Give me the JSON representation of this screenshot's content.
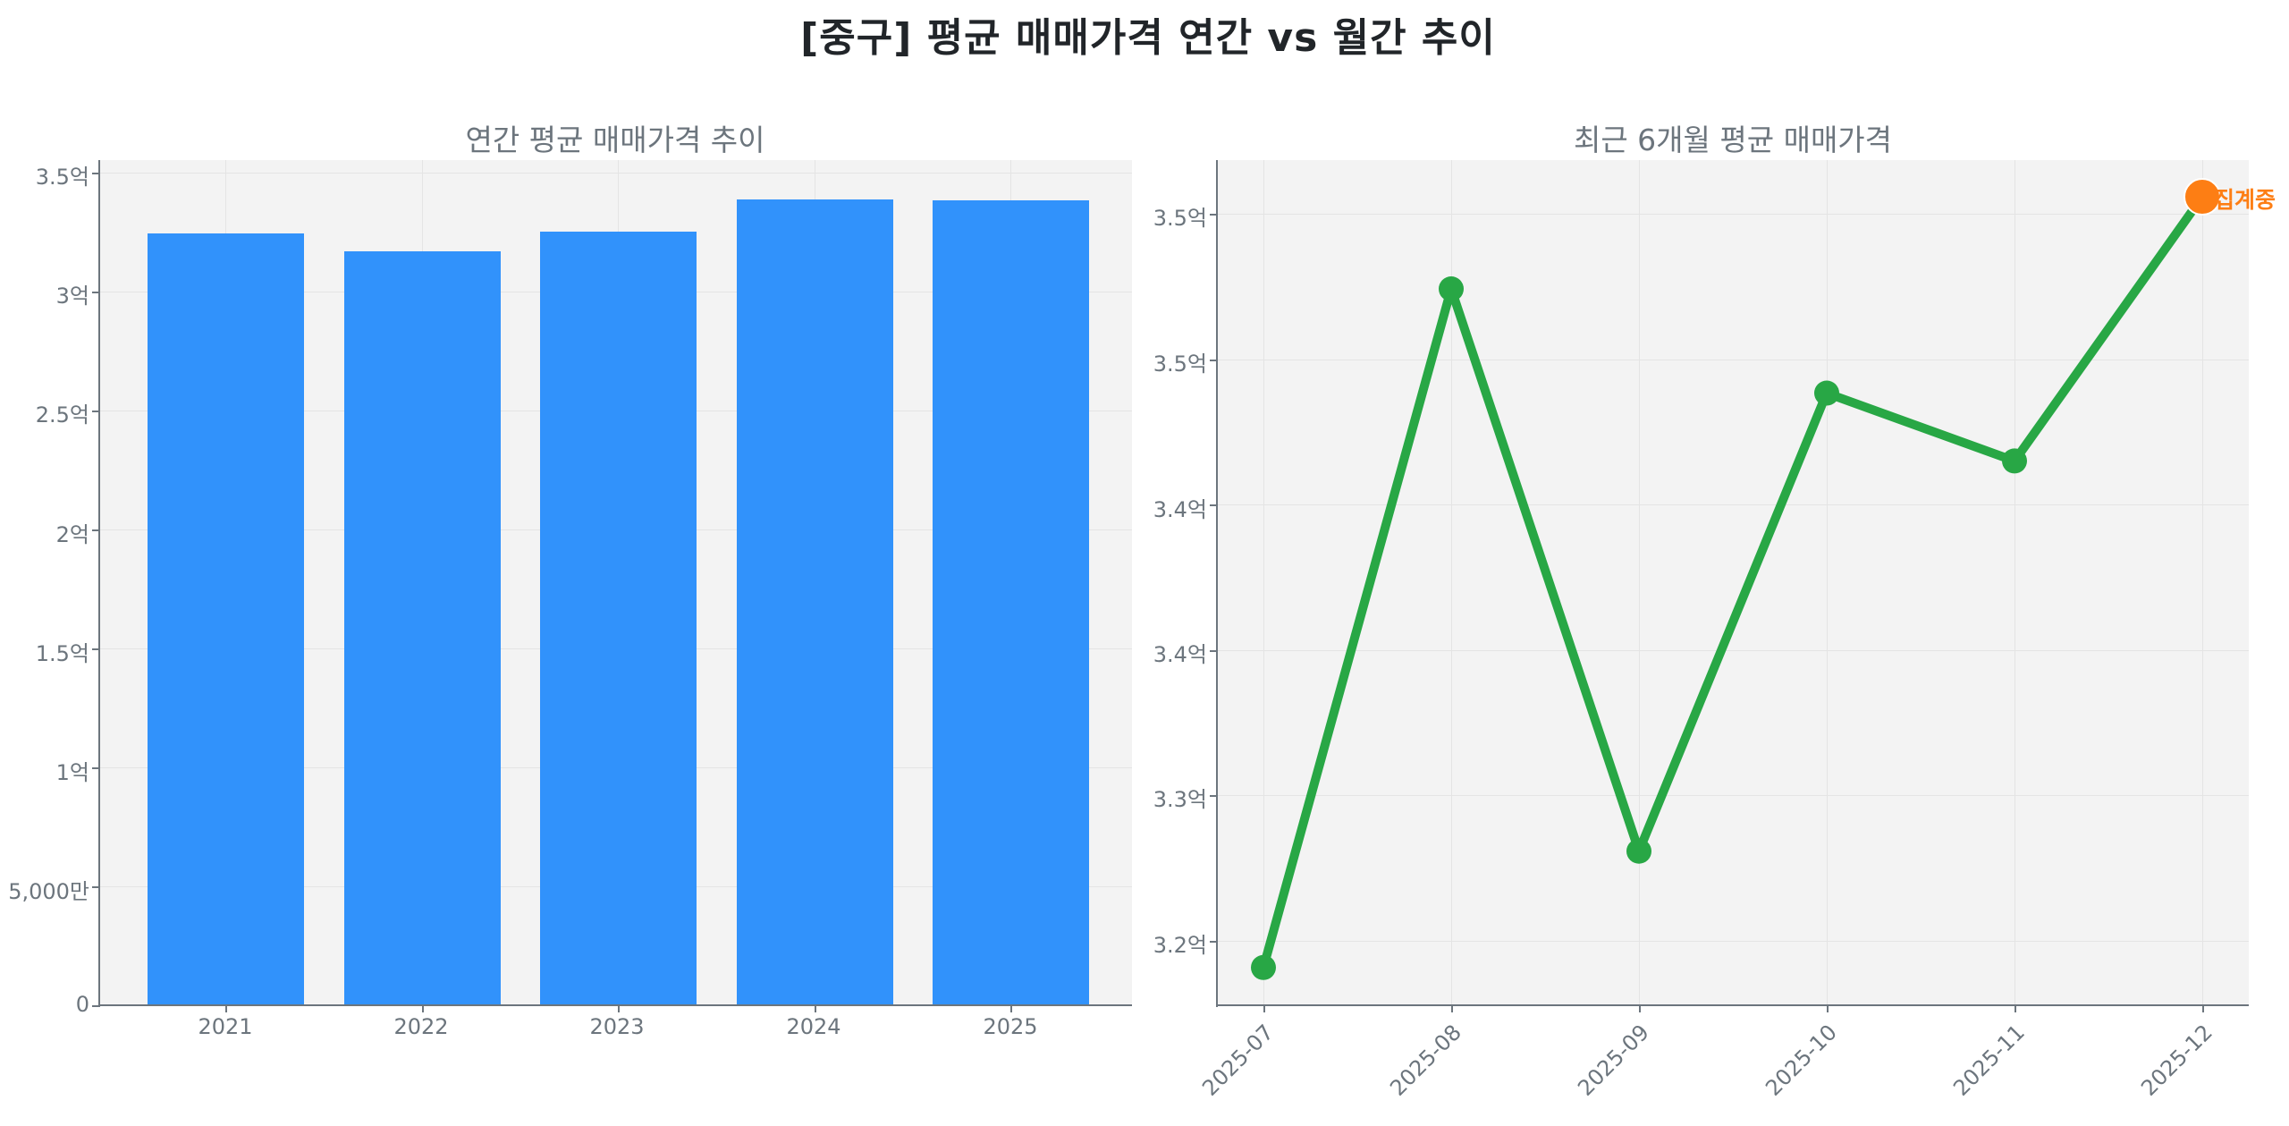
{
  "figure": {
    "title": "[중구] 평균 매매가격 연간 vs 월간 추이"
  },
  "colors": {
    "bar": "#3192fb",
    "line": "#28a745",
    "highlight": "#fd7e14",
    "plot_bg": "#f3f3f3",
    "text": "#212529",
    "axis_text": "#6c757d"
  },
  "chart_data": [
    {
      "type": "bar",
      "title": "연간 평균 매매가격 추이",
      "xlabel": "",
      "ylabel": "",
      "categories": [
        "2021",
        "2022",
        "2023",
        "2024",
        "2025"
      ],
      "values": [
        324400000,
        317000000,
        325200000,
        338600000,
        338200000
      ],
      "values_label_unit": "원",
      "ylim": [
        0,
        355000000
      ],
      "yticks": [
        {
          "value": 0,
          "label": "0"
        },
        {
          "value": 50000000,
          "label": "5,000만"
        },
        {
          "value": 100000000,
          "label": "1억"
        },
        {
          "value": 150000000,
          "label": "1.5억"
        },
        {
          "value": 200000000,
          "label": "2억"
        },
        {
          "value": 250000000,
          "label": "2.5억"
        },
        {
          "value": 300000000,
          "label": "3억"
        },
        {
          "value": 350000000,
          "label": "3.5억"
        }
      ],
      "grid": true,
      "legend": null
    },
    {
      "type": "line",
      "title": "최근 6개월 평균 매매가격",
      "xlabel": "",
      "ylabel": "",
      "x": [
        "2025-07",
        "2025-08",
        "2025-09",
        "2025-10",
        "2025-11",
        "2025-12"
      ],
      "values": [
        322900000,
        350900000,
        327700000,
        346600000,
        343800000,
        354700000
      ],
      "yticks": [
        {
          "value": 324000000,
          "label": "3.2억"
        },
        {
          "value": 330000000,
          "label": "3.3억"
        },
        {
          "value": 336000000,
          "label": "3.4억"
        },
        {
          "value": 342000000,
          "label": "3.4억"
        },
        {
          "value": 348000000,
          "label": "3.5억"
        },
        {
          "value": 354000000,
          "label": "3.5억"
        }
      ],
      "ylim": [
        322200000,
        357500000
      ],
      "grid": true,
      "legend": null,
      "annotations": [
        {
          "x": "2025-12",
          "text": "집계중",
          "color": "#fd7e14"
        }
      ],
      "highlight_point": {
        "x": "2025-12",
        "color": "#fd7e14"
      }
    }
  ]
}
